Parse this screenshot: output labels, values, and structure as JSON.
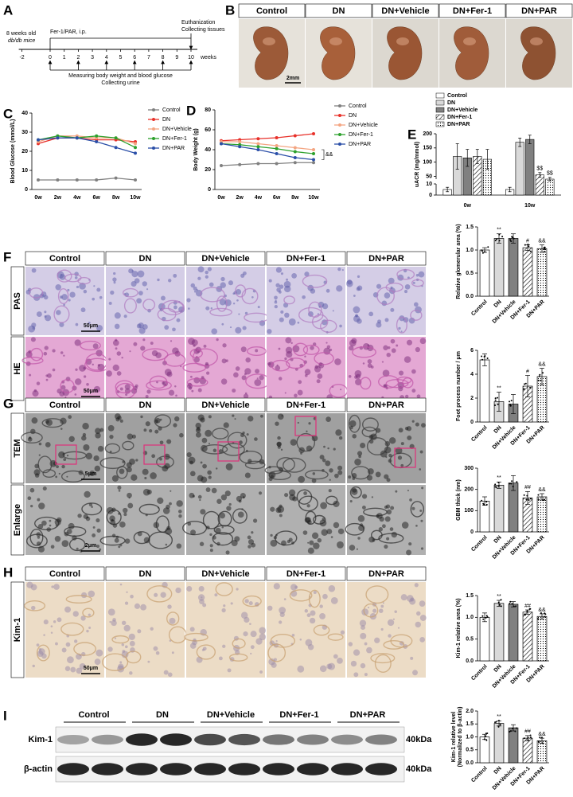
{
  "figure": {
    "A": {
      "letter": "A",
      "mice": "8 weeks old",
      "strain": "db/db mice",
      "treatment": "Fer-1/PAR, i.p.",
      "end": [
        "Euthanization",
        "Collecting tissues"
      ],
      "weeks": [
        -2,
        0,
        1,
        2,
        3,
        4,
        5,
        6,
        7,
        8,
        9,
        10
      ],
      "unit": "weeks",
      "measure": "Measuring body weight and blood glucose",
      "urine": "Collecting urine"
    },
    "B": {
      "letter": "B",
      "groups": [
        "Control",
        "DN",
        "DN+Vehicle",
        "DN+Fer-1",
        "DN+PAR"
      ],
      "scale": "2mm"
    },
    "F": {
      "letter": "F",
      "groups": [
        "Control",
        "DN",
        "DN+Vehicle",
        "DN+Fer-1",
        "DN+PAR"
      ],
      "rows": [
        "PAS",
        "HE"
      ],
      "scale": "50μm"
    },
    "G": {
      "letter": "G",
      "groups": [
        "Control",
        "DN",
        "DN+Vehicle",
        "DN+Fer-1",
        "DN+PAR"
      ],
      "rows": [
        "TEM",
        "Enlarge"
      ],
      "scales": [
        "5μm",
        "2μm"
      ]
    },
    "H": {
      "letter": "H",
      "groups": [
        "Control",
        "DN",
        "DN+Vehicle",
        "DN+Fer-1",
        "DN+PAR"
      ],
      "rows": [
        "Kim-1"
      ],
      "scale": "50μm"
    },
    "I": {
      "letter": "I",
      "groups": [
        "Control",
        "DN",
        "DN+Vehicle",
        "DN+Fer-1",
        "DN+PAR"
      ],
      "rows": [
        "Kim-1",
        "β-actin"
      ],
      "markers": [
        "40kDa",
        "40kDa"
      ]
    }
  },
  "chart_data": [
    {
      "type": "line",
      "letter": "C",
      "ylabel": "Blood Glucose (mmol/L)",
      "categories": [
        "0w",
        "2w",
        "4w",
        "6w",
        "8w",
        "10w"
      ],
      "ylim": [
        0,
        40
      ],
      "yticks": [
        0,
        10,
        20,
        30,
        40
      ],
      "series": [
        {
          "name": "Control",
          "color": "#808080",
          "values": [
            5,
            5,
            5,
            5,
            6,
            5
          ]
        },
        {
          "name": "DN",
          "color": "#e8312a",
          "values": [
            24,
            27,
            27,
            26,
            26,
            25
          ]
        },
        {
          "name": "DN+Vehicle",
          "color": "#f4a582",
          "values": [
            25,
            28,
            28,
            27,
            27,
            24
          ]
        },
        {
          "name": "DN+Fer-1",
          "color": "#2ca02c",
          "values": [
            26,
            28,
            27,
            28,
            27,
            22
          ]
        },
        {
          "name": "DN+PAR",
          "color": "#2b4fa8",
          "values": [
            26,
            27,
            27,
            25,
            22,
            19
          ]
        }
      ]
    },
    {
      "type": "line",
      "letter": "D",
      "ylabel": "Body Weight (g)",
      "categories": [
        "0w",
        "2w",
        "4w",
        "6w",
        "8w",
        "10w"
      ],
      "ylim": [
        0,
        80
      ],
      "yticks": [
        0,
        20,
        40,
        60,
        80
      ],
      "annotation": "&&",
      "series": [
        {
          "name": "Control",
          "color": "#808080",
          "values": [
            24,
            25,
            26,
            26,
            27,
            27
          ]
        },
        {
          "name": "DN",
          "color": "#e8312a",
          "values": [
            49,
            50,
            51,
            52,
            54,
            56
          ]
        },
        {
          "name": "DN+Vehicle",
          "color": "#f4a582",
          "values": [
            48,
            48,
            46,
            44,
            42,
            40
          ]
        },
        {
          "name": "DN+Fer-1",
          "color": "#2ca02c",
          "values": [
            46,
            45,
            43,
            41,
            38,
            36
          ]
        },
        {
          "name": "DN+PAR",
          "color": "#2b4fa8",
          "values": [
            46,
            43,
            40,
            36,
            32,
            30
          ]
        }
      ]
    },
    {
      "type": "bar",
      "letter": "E",
      "ylabel": "uACR (mg/mmol)",
      "categories": [
        "0w",
        "10w"
      ],
      "ylim": [
        0,
        200
      ],
      "yticks": [
        0,
        10,
        50,
        100,
        150,
        200
      ],
      "axis_break": [
        10,
        40
      ],
      "series": [
        {
          "name": "Control",
          "fill": "#ffffff",
          "values": [
            5,
            5
          ],
          "errors": [
            2,
            2
          ],
          "annotations": [
            null,
            null
          ]
        },
        {
          "name": "DN",
          "fill": "#d9d9d9",
          "values": [
            120,
            170
          ],
          "errors": [
            45,
            15
          ],
          "annotations": [
            null,
            null
          ]
        },
        {
          "name": "DN+Vehicle",
          "fill": "#808080",
          "values": [
            115,
            180
          ],
          "errors": [
            30,
            15
          ],
          "annotations": [
            null,
            null
          ]
        },
        {
          "name": "DN+Fer-1",
          "fill": "hatch",
          "values": [
            120,
            55
          ],
          "errors": [
            25,
            8
          ],
          "annotations": [
            null,
            "$$"
          ]
        },
        {
          "name": "DN+PAR",
          "fill": "dots",
          "values": [
            110,
            40
          ],
          "errors": [
            35,
            6
          ],
          "annotations": [
            null,
            "$$"
          ]
        }
      ]
    },
    {
      "type": "bar",
      "ylabel": "Relative glomerular area (%)",
      "categories": [
        "Control",
        "DN",
        "DN+Vehicle",
        "DN+Fer-1",
        "DN+PAR"
      ],
      "values": [
        1.0,
        1.25,
        1.25,
        1.05,
        1.03
      ],
      "errors": [
        0.05,
        0.1,
        0.1,
        0.06,
        0.08
      ],
      "annotations": [
        null,
        "**",
        null,
        "#",
        "&&"
      ],
      "fills": [
        "#ffffff",
        "#d9d9d9",
        "#808080",
        "hatch",
        "dots"
      ],
      "ylim": [
        0,
        1.5
      ],
      "yticks": [
        {
          "value": 0,
          "label": "0.0"
        },
        0.5,
        {
          "value": 1,
          "label": "1.0"
        },
        1.5
      ]
    },
    {
      "type": "bar",
      "ylabel": "Foot process number / μm",
      "categories": [
        "Control",
        "DN",
        "DN+Vehicle",
        "DN+Fer-1",
        "DN+PAR"
      ],
      "values": [
        5.2,
        1.7,
        1.5,
        3.0,
        3.8
      ],
      "errors": [
        0.5,
        0.8,
        0.8,
        0.9,
        0.7
      ],
      "annotations": [
        null,
        "**",
        null,
        "#",
        "&&"
      ],
      "fills": [
        "#ffffff",
        "#d9d9d9",
        "#808080",
        "hatch",
        "dots"
      ],
      "ylim": [
        0,
        6
      ],
      "yticks": [
        0,
        2,
        4,
        6
      ]
    },
    {
      "type": "bar",
      "ylabel": "GBM thick (nm)",
      "categories": [
        "Control",
        "DN",
        "DN+Vehicle",
        "DN+Fer-1",
        "DN+PAR"
      ],
      "values": [
        145,
        220,
        230,
        160,
        165
      ],
      "errors": [
        20,
        15,
        35,
        30,
        15
      ],
      "annotations": [
        null,
        "**",
        null,
        "##",
        "&&"
      ],
      "fills": [
        "#ffffff",
        "#d9d9d9",
        "#808080",
        "hatch",
        "dots"
      ],
      "ylim": [
        0,
        300
      ],
      "yticks": [
        0,
        100,
        200,
        300
      ]
    },
    {
      "type": "bar",
      "ylabel": "Kim-1 relative area (%)",
      "categories": [
        "Control",
        "DN",
        "DN+Vehicle",
        "DN+Fer-1",
        "DN+PAR"
      ],
      "values": [
        1.0,
        1.32,
        1.3,
        1.12,
        1.02
      ],
      "errors": [
        0.1,
        0.07,
        0.06,
        0.05,
        0.06
      ],
      "annotations": [
        null,
        "**",
        null,
        "##",
        "&&"
      ],
      "fills": [
        "#ffffff",
        "#d9d9d9",
        "#808080",
        "hatch",
        "dots"
      ],
      "ylim": [
        0,
        1.5
      ],
      "yticks": [
        {
          "value": 0,
          "label": "0.0"
        },
        0.5,
        {
          "value": 1,
          "label": "1.0"
        },
        1.5
      ]
    },
    {
      "type": "bar",
      "ylabel": [
        "Kim-1 relative level",
        "(Normalized to β-actin)"
      ],
      "categories": [
        "Control",
        "DN",
        "DN+Vehicle",
        "DN+Fer-1",
        "DN+PAR"
      ],
      "values": [
        1.0,
        1.52,
        1.35,
        0.95,
        0.85
      ],
      "errors": [
        0.1,
        0.1,
        0.12,
        0.1,
        0.1
      ],
      "annotations": [
        null,
        "**",
        null,
        "##",
        "&&"
      ],
      "fills": [
        "#ffffff",
        "#d9d9d9",
        "#808080",
        "hatch",
        "dots"
      ],
      "ylim": [
        0,
        2
      ],
      "yticks": [
        {
          "value": 0,
          "label": "0.0"
        },
        0.5,
        {
          "value": 1,
          "label": "1.0"
        },
        1.5,
        {
          "value": 2,
          "label": "2.0"
        }
      ]
    }
  ]
}
